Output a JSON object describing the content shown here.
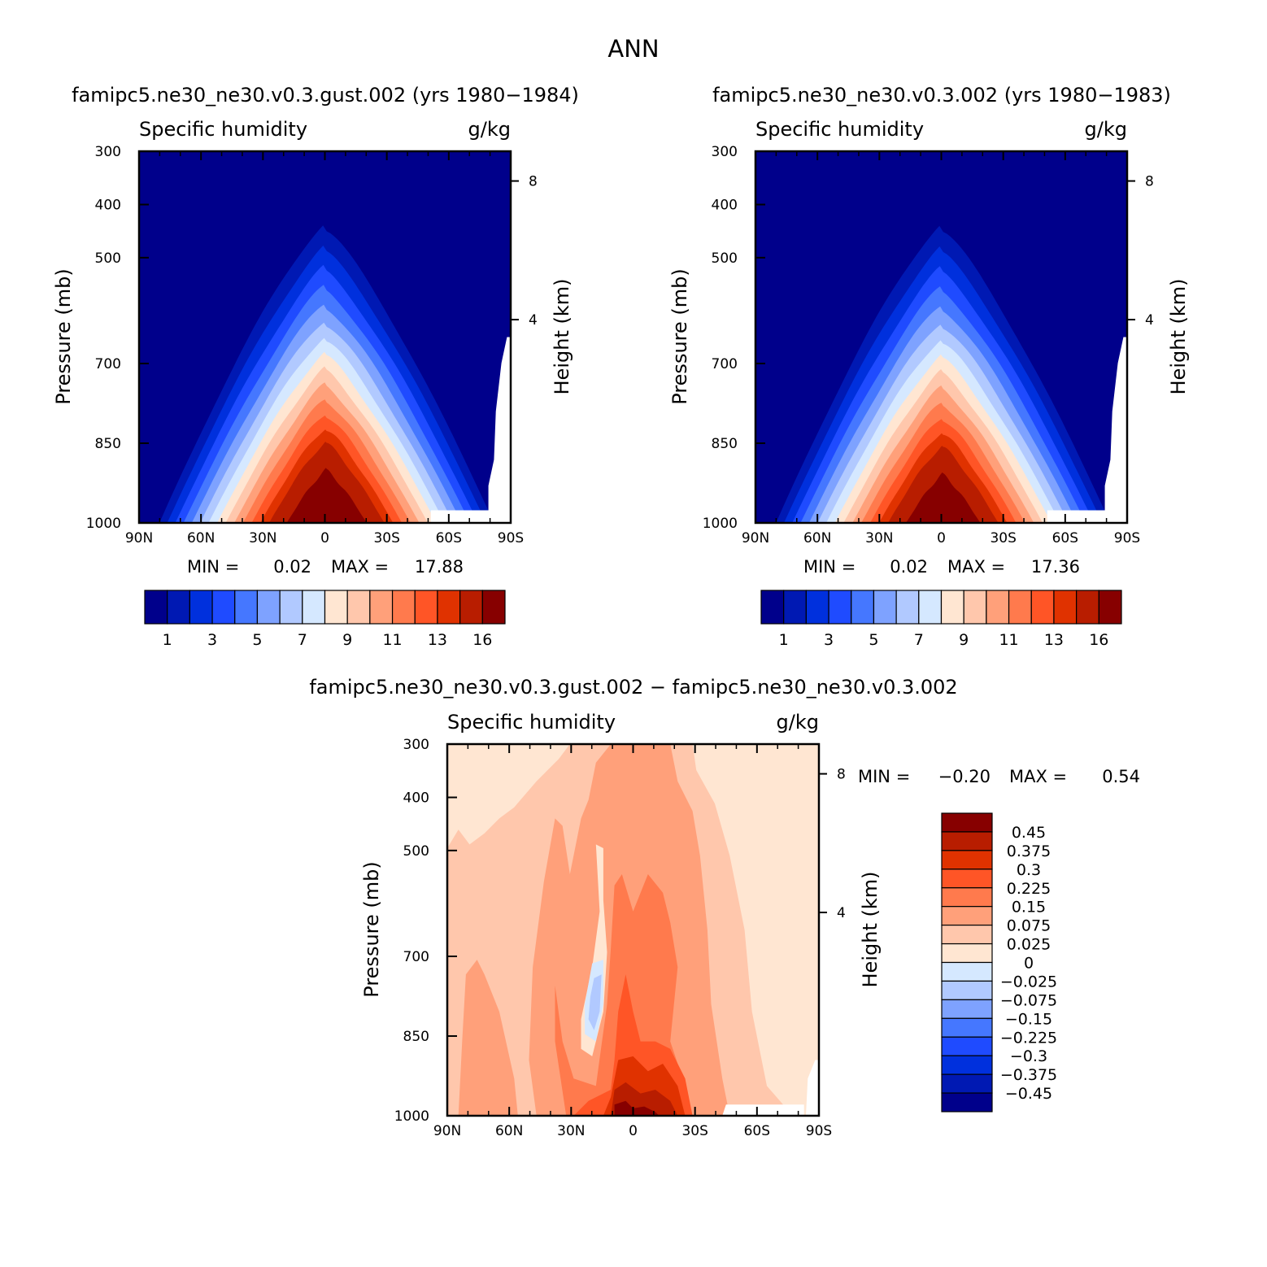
{
  "figure": {
    "title": "ANN"
  },
  "panels": [
    {
      "id": "test",
      "case_title": "famipc5.ne30_ne30.v0.3.gust.002 (yrs 1980−1984)",
      "variable": "Specific humidity",
      "units": "g/kg",
      "ylabel": "Pressure (mb)",
      "y2label": "Height (km)",
      "min_label": "MIN =",
      "min_value": "0.02",
      "max_label": "MAX =",
      "max_value": "17.88"
    },
    {
      "id": "control",
      "case_title": "famipc5.ne30_ne30.v0.3.002 (yrs 1980−1983)",
      "variable": "Specific humidity",
      "units": "g/kg",
      "ylabel": "Pressure (mb)",
      "y2label": "Height (km)",
      "min_label": "MIN =",
      "min_value": "0.02",
      "max_label": "MAX =",
      "max_value": "17.36"
    },
    {
      "id": "difference",
      "case_title": "famipc5.ne30_ne30.v0.3.gust.002 − famipc5.ne30_ne30.v0.3.002",
      "variable": "Specific humidity",
      "units": "g/kg",
      "ylabel": "Pressure (mb)",
      "y2label": "Height (km)",
      "min_label": "MIN =",
      "min_value": "−0.20",
      "max_label": "MAX =",
      "max_value": "0.54"
    }
  ],
  "axes": {
    "x_ticks": [
      "90N",
      "60N",
      "30N",
      "0",
      "30S",
      "60S",
      "90S"
    ],
    "y_ticks": [
      "300",
      "400",
      "500",
      "700",
      "850",
      "1000"
    ],
    "height_ticks": [
      "8",
      "4"
    ]
  },
  "colorbar_abs": {
    "colors": [
      "#00008b",
      "#0019b3",
      "#0030dd",
      "#1f4bff",
      "#4577ff",
      "#7ea2ff",
      "#b1c9ff",
      "#d5e8ff",
      "#ffe6d2",
      "#ffc7ac",
      "#ffa07a",
      "#ff7a4d",
      "#ff5526",
      "#e03200",
      "#b81d00",
      "#870000"
    ],
    "labels": [
      "1",
      "3",
      "5",
      "7",
      "9",
      "11",
      "13",
      "16"
    ]
  },
  "colorbar_diff": {
    "colors": [
      "#870000",
      "#b81d00",
      "#e03200",
      "#ff5526",
      "#ff7a4d",
      "#ffa07a",
      "#ffc7ac",
      "#ffe6d2",
      "#d5e8ff",
      "#b1c9ff",
      "#7ea2ff",
      "#4577ff",
      "#1f4bff",
      "#0030dd",
      "#0019b3",
      "#00008b"
    ],
    "labels": [
      "0.45",
      "0.375",
      "0.3",
      "0.225",
      "0.15",
      "0.075",
      "0.025",
      "0",
      "−0.025",
      "−0.075",
      "−0.15",
      "−0.225",
      "−0.3",
      "−0.375",
      "−0.45"
    ]
  },
  "chart_data": [
    {
      "type": "heatmap",
      "title": "famipc5.ne30_ne30.v0.3.gust.002 (yrs 1980−1984)",
      "subtitle": "Specific humidity",
      "units": "g/kg",
      "xlabel": "",
      "ylabel": "Pressure (mb)",
      "y2label": "Height (km)",
      "x_ticks": [
        "90N",
        "60N",
        "30N",
        "0",
        "30S",
        "60S",
        "90S"
      ],
      "y_ticks": [
        300,
        400,
        500,
        700,
        850,
        1000
      ],
      "ylim": [
        1000,
        300
      ],
      "contour_levels": [
        1,
        2,
        3,
        4,
        5,
        6,
        7,
        8,
        9,
        10,
        11,
        12,
        13,
        14,
        16
      ],
      "min": 0.02,
      "max": 17.88,
      "colorbar_labels": [
        "1",
        "3",
        "5",
        "7",
        "9",
        "11",
        "13",
        "16"
      ]
    },
    {
      "type": "heatmap",
      "title": "famipc5.ne30_ne30.v0.3.002 (yrs 1980−1983)",
      "subtitle": "Specific humidity",
      "units": "g/kg",
      "xlabel": "",
      "ylabel": "Pressure (mb)",
      "y2label": "Height (km)",
      "x_ticks": [
        "90N",
        "60N",
        "30N",
        "0",
        "30S",
        "60S",
        "90S"
      ],
      "y_ticks": [
        300,
        400,
        500,
        700,
        850,
        1000
      ],
      "ylim": [
        1000,
        300
      ],
      "contour_levels": [
        1,
        2,
        3,
        4,
        5,
        6,
        7,
        8,
        9,
        10,
        11,
        12,
        13,
        14,
        16
      ],
      "min": 0.02,
      "max": 17.36,
      "colorbar_labels": [
        "1",
        "3",
        "5",
        "7",
        "9",
        "11",
        "13",
        "16"
      ]
    },
    {
      "type": "heatmap",
      "title": "famipc5.ne30_ne30.v0.3.gust.002 − famipc5.ne30_ne30.v0.3.002",
      "subtitle": "Specific humidity",
      "units": "g/kg",
      "xlabel": "",
      "ylabel": "Pressure (mb)",
      "y2label": "Height (km)",
      "x_ticks": [
        "90N",
        "60N",
        "30N",
        "0",
        "30S",
        "60S",
        "90S"
      ],
      "y_ticks": [
        300,
        400,
        500,
        700,
        850,
        1000
      ],
      "ylim": [
        1000,
        300
      ],
      "contour_levels": [
        -0.45,
        -0.375,
        -0.3,
        -0.225,
        -0.15,
        -0.075,
        -0.025,
        0,
        0.025,
        0.075,
        0.15,
        0.225,
        0.3,
        0.375,
        0.45
      ],
      "min": -0.2,
      "max": 0.54,
      "colorbar_labels": [
        "0.45",
        "0.375",
        "0.3",
        "0.225",
        "0.15",
        "0.075",
        "0.025",
        "0",
        "−0.025",
        "−0.075",
        "−0.15",
        "−0.225",
        "−0.3",
        "−0.375",
        "−0.45"
      ]
    }
  ]
}
